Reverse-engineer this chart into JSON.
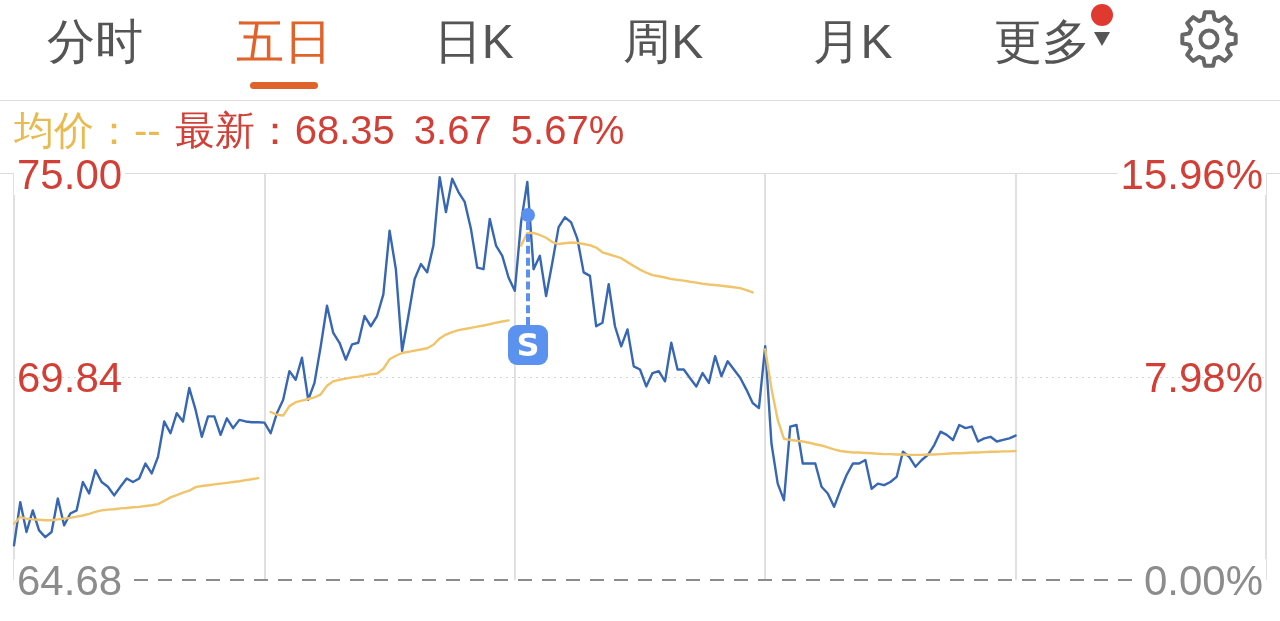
{
  "chart_data": {
    "type": "line",
    "annotations": [
      "分时",
      "五日",
      "日K",
      "周K",
      "月K",
      "更多",
      "均价：--",
      "最新：68.35 3.67 5.67%",
      "S"
    ],
    "categories": [
      null,
      null,
      null,
      null,
      null,
      null,
      null,
      null,
      null,
      null,
      null,
      null,
      null,
      null,
      null,
      null,
      null,
      null,
      null,
      null,
      null,
      null,
      null,
      null,
      null,
      null,
      null,
      null,
      null,
      null,
      null,
      null,
      null,
      null,
      null,
      null,
      null,
      null,
      null,
      null,
      null,
      null,
      null,
      null,
      null,
      null,
      null,
      null,
      null,
      null,
      null,
      null,
      null,
      null,
      null,
      null,
      null,
      null,
      null,
      null,
      null,
      null,
      null,
      null,
      null,
      null,
      null,
      null,
      null,
      null,
      null,
      null,
      null,
      null,
      null,
      null,
      null,
      null,
      null,
      null,
      null,
      null,
      null,
      null,
      null,
      null,
      null,
      null,
      null,
      null,
      null,
      null,
      null,
      null,
      null,
      null,
      null,
      null,
      null,
      null,
      null,
      null,
      null,
      null,
      null,
      null,
      null,
      null,
      null,
      null,
      null,
      null,
      null,
      null,
      null,
      null,
      null,
      null,
      null,
      null,
      null,
      null,
      null,
      null,
      null,
      null,
      null,
      null,
      null,
      null,
      null,
      null,
      null,
      null,
      null,
      null,
      null,
      null,
      null,
      null,
      null,
      null,
      null,
      null,
      null,
      null,
      null,
      null,
      null,
      null,
      null,
      null,
      null,
      null,
      null,
      null,
      null,
      null,
      null,
      null,
      null,
      null,
      null,
      null,
      null,
      null,
      null,
      null,
      null,
      null,
      null,
      null,
      null,
      null,
      null,
      null,
      null,
      null,
      null,
      null,
      null,
      null,
      null,
      null,
      null,
      null,
      null,
      null,
      null,
      null,
      null,
      null,
      null,
      null,
      null,
      null,
      null,
      null,
      null,
      null,
      null
    ],
    "series": [
      {
        "color": "#3767b2",
        "values": [
          65.56,
          66.66,
          65.9,
          66.45,
          65.94,
          65.77,
          65.9,
          66.75,
          66.07,
          66.37,
          66.45,
          67.17,
          66.88,
          67.47,
          67.17,
          67.05,
          66.83,
          67.05,
          67.26,
          67.17,
          67.26,
          67.64,
          67.39,
          67.81,
          68.71,
          68.41,
          68.92,
          68.71,
          69.56,
          69.01,
          68.32,
          68.84,
          68.84,
          68.37,
          68.79,
          68.54,
          68.75,
          68.71,
          68.69,
          68.69,
          68.68,
          68.41,
          68.92,
          69.26,
          69.99,
          69.77,
          70.33,
          69.26,
          69.69,
          70.62,
          71.65,
          70.96,
          70.71,
          70.28,
          70.67,
          70.71,
          71.39,
          71.13,
          71.39,
          71.94,
          73.56,
          72.58,
          70.5,
          71.39,
          72.33,
          72.71,
          72.5,
          73.18,
          74.92,
          74.03,
          74.88,
          74.54,
          74.29,
          73.6,
          72.62,
          72.58,
          73.86,
          73.18,
          72.92,
          72.37,
          72.03,
          73.77,
          74.8,
          72.58,
          72.92,
          71.9,
          72.75,
          73.65,
          73.9,
          73.77,
          73.35,
          72.5,
          72.41,
          71.13,
          71.22,
          72.2,
          71.13,
          70.62,
          71.05,
          70.11,
          70.03,
          69.6,
          69.94,
          69.99,
          69.73,
          70.71,
          70.03,
          70.03,
          69.81,
          69.6,
          69.94,
          69.69,
          70.37,
          69.86,
          70.24,
          70.03,
          69.82,
          69.52,
          69.18,
          69.05,
          70.62,
          68.15,
          67.13,
          66.71,
          68.58,
          68.62,
          67.64,
          67.64,
          67.64,
          67.05,
          66.88,
          66.54,
          66.96,
          67.35,
          67.64,
          67.64,
          67.73,
          67.0,
          67.13,
          67.09,
          67.17,
          67.3,
          67.94,
          67.81,
          67.56,
          67.73,
          67.86,
          68.11,
          68.45,
          68.37,
          68.24,
          68.62,
          68.54,
          68.58,
          68.2,
          68.28,
          68.32,
          68.2,
          68.24,
          68.28,
          68.35,
          null,
          null,
          null,
          null,
          null,
          null,
          null,
          null,
          null,
          null,
          null,
          null,
          null,
          null,
          null,
          null,
          null,
          null,
          null,
          null,
          null,
          null,
          null,
          null,
          null,
          null,
          null,
          null,
          null,
          null,
          null,
          null,
          null,
          null,
          null,
          null,
          null,
          null,
          null,
          null
        ]
      },
      {
        "color": "#f0c46a",
        "values": [
          66.11,
          66.28,
          66.24,
          66.22,
          66.21,
          66.2,
          66.2,
          66.22,
          66.24,
          66.26,
          66.29,
          66.32,
          66.36,
          66.41,
          66.45,
          66.47,
          66.48,
          66.5,
          66.51,
          66.53,
          66.54,
          66.56,
          66.58,
          66.61,
          66.69,
          66.78,
          66.84,
          66.9,
          66.95,
          67.04,
          67.07,
          67.09,
          67.11,
          67.13,
          67.15,
          67.17,
          67.19,
          67.22,
          67.24,
          67.27,
          null,
          68.95,
          68.88,
          68.86,
          69.1,
          69.2,
          69.24,
          69.28,
          69.32,
          69.4,
          69.62,
          69.73,
          69.77,
          69.8,
          69.83,
          69.85,
          69.88,
          69.91,
          69.93,
          70.05,
          70.29,
          70.38,
          70.45,
          70.48,
          70.51,
          70.54,
          70.57,
          70.66,
          70.82,
          70.92,
          70.98,
          71.03,
          71.06,
          71.09,
          71.12,
          71.15,
          71.18,
          71.22,
          71.25,
          71.28,
          null,
          73.18,
          73.5,
          73.5,
          73.45,
          73.38,
          73.27,
          73.22,
          73.24,
          73.26,
          73.25,
          73.22,
          73.19,
          73.13,
          73.01,
          72.96,
          72.91,
          72.86,
          72.76,
          72.66,
          72.57,
          72.49,
          72.43,
          72.4,
          72.37,
          72.33,
          72.31,
          72.29,
          72.26,
          72.24,
          72.21,
          72.19,
          72.18,
          72.16,
          72.14,
          72.12,
          72.1,
          72.05,
          71.99,
          null,
          70.54,
          69.55,
          68.75,
          68.27,
          68.24,
          68.22,
          68.2,
          68.17,
          68.13,
          68.1,
          68.05,
          68.0,
          67.96,
          67.94,
          67.92,
          67.92,
          67.91,
          67.9,
          67.89,
          67.88,
          67.88,
          67.87,
          67.87,
          67.86,
          67.86,
          67.86,
          67.87,
          67.87,
          67.88,
          67.89,
          67.9,
          67.9,
          67.91,
          67.92,
          67.92,
          67.93,
          67.94,
          67.94,
          67.95,
          67.95,
          67.96,
          null,
          null,
          null,
          null,
          null,
          null,
          null,
          null,
          null,
          null,
          null,
          null,
          null,
          null,
          null,
          null,
          null,
          null,
          null,
          null,
          null,
          null,
          null,
          null,
          null,
          null,
          null,
          null,
          null,
          null,
          null,
          null,
          null,
          null,
          null,
          null,
          null,
          null,
          null,
          null
        ]
      }
    ],
    "ylim": [
      64.68,
      75
    ],
    "yticks": [
      64.68,
      69.84,
      {
        "value": 75,
        "label": "75.00"
      }
    ],
    "y2lim": [
      0,
      15.96
    ],
    "y2ticks": [
      {
        "value": 0,
        "label": "0.00%"
      },
      {
        "value": 7.98,
        "label": "7.98%"
      },
      {
        "value": 15.96,
        "label": "15.96%"
      }
    ],
    "ref_lines": [
      {
        "axis": "y",
        "value": 64.68,
        "color": "#8c8c8c",
        "line_style": "dashed"
      },
      {
        "axis": "y",
        "value": 69.84,
        "color": "#d6d6d6",
        "line_style": "dotted"
      }
    ],
    "grid": "x",
    "tick_labels": "y"
  }
}
